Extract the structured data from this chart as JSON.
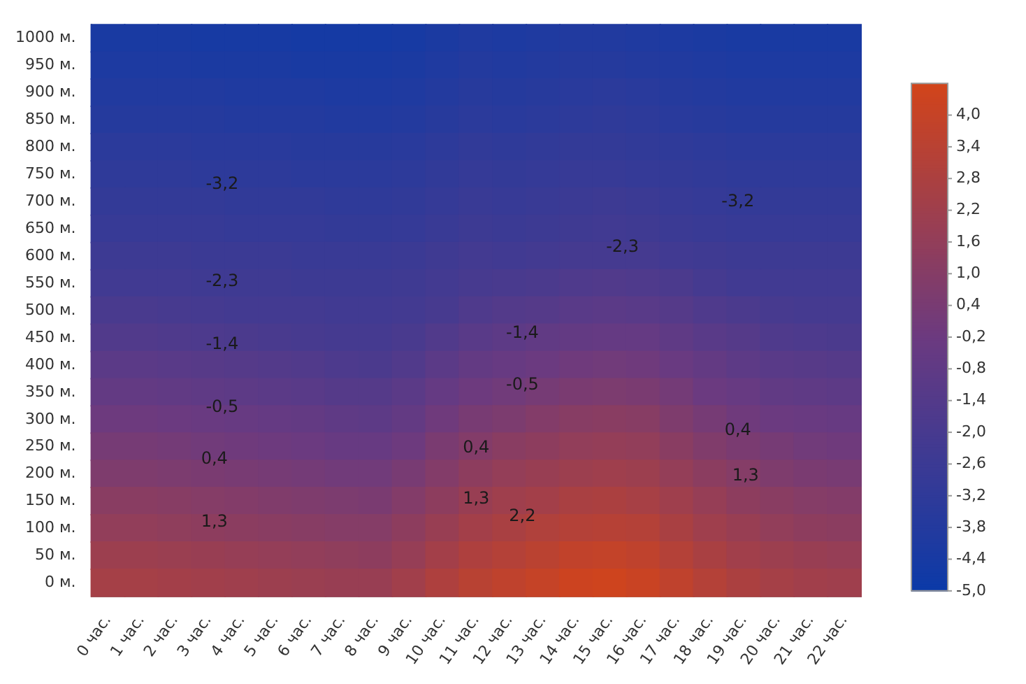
{
  "chart_data": {
    "type": "heatmap",
    "categories": [
      "0 час.",
      "1 час.",
      "2 час.",
      "3 час.",
      "4 час.",
      "5 час.",
      "6 час.",
      "7 час.",
      "8 час.",
      "9 час.",
      "10 час.",
      "11 час.",
      "12 час.",
      "13 час.",
      "14 час.",
      "15 час.",
      "16 час.",
      "17 час.",
      "18 час.",
      "19 час.",
      "20 час.",
      "21 час.",
      "22 час."
    ],
    "y_categories": [
      "1000 м.",
      "950 м.",
      "900 м.",
      "850 м.",
      "800 м.",
      "750 м.",
      "700 м.",
      "650 м.",
      "600 м.",
      "550 м.",
      "500 м.",
      "450 м.",
      "400 м.",
      "350 м.",
      "300 м.",
      "250 м.",
      "200 м.",
      "150 м.",
      "100 м.",
      "50 м.",
      "0 м."
    ],
    "cells": [
      [
        -4.3,
        -4.3,
        -4.3,
        -4.4,
        -4.4,
        -4.4,
        -4.5,
        -4.5,
        -4.5,
        -4.4,
        -4.2,
        -4.0,
        -4.1,
        -4.0,
        -3.9,
        -3.9,
        -4.0,
        -4.1,
        -4.2,
        -4.3,
        -4.3,
        -4.3,
        -4.3
      ],
      [
        -4.1,
        -4.1,
        -4.1,
        -4.2,
        -4.2,
        -4.2,
        -4.3,
        -4.3,
        -4.3,
        -4.2,
        -4.0,
        -3.8,
        -3.9,
        -3.8,
        -3.7,
        -3.7,
        -3.8,
        -3.9,
        -4.0,
        -4.1,
        -4.1,
        -4.1,
        -4.1
      ],
      [
        -3.9,
        -3.9,
        -3.9,
        -3.9,
        -4.0,
        -4.0,
        -4.0,
        -4.1,
        -4.1,
        -4.0,
        -3.8,
        -3.6,
        -3.7,
        -3.6,
        -3.5,
        -3.4,
        -3.5,
        -3.7,
        -3.8,
        -3.9,
        -3.9,
        -3.9,
        -3.9
      ],
      [
        -3.7,
        -3.7,
        -3.7,
        -3.7,
        -3.8,
        -3.8,
        -3.8,
        -3.9,
        -3.9,
        -3.8,
        -3.6,
        -3.4,
        -3.5,
        -3.4,
        -3.3,
        -3.2,
        -3.3,
        -3.5,
        -3.6,
        -3.7,
        -3.7,
        -3.7,
        -3.7
      ],
      [
        -3.4,
        -3.4,
        -3.4,
        -3.5,
        -3.5,
        -3.5,
        -3.6,
        -3.6,
        -3.6,
        -3.5,
        -3.3,
        -3.1,
        -3.2,
        -3.1,
        -3.0,
        -3.0,
        -3.1,
        -3.2,
        -3.3,
        -3.4,
        -3.4,
        -3.4,
        -3.4
      ],
      [
        -3.2,
        -3.2,
        -3.2,
        -3.3,
        -3.3,
        -3.3,
        -3.4,
        -3.4,
        -3.4,
        -3.3,
        -3.1,
        -2.9,
        -3.0,
        -2.9,
        -2.8,
        -2.8,
        -2.9,
        -3.0,
        -3.1,
        -3.2,
        -3.2,
        -3.2,
        -3.2
      ],
      [
        -3.0,
        -3.0,
        -3.0,
        -3.0,
        -3.1,
        -3.1,
        -3.1,
        -3.2,
        -3.2,
        -3.1,
        -2.9,
        -2.7,
        -2.8,
        -2.7,
        -2.6,
        -2.5,
        -2.6,
        -2.8,
        -2.9,
        -3.0,
        -3.0,
        -3.0,
        -3.0
      ],
      [
        -2.8,
        -2.8,
        -2.8,
        -2.8,
        -2.9,
        -2.9,
        -2.9,
        -3.0,
        -3.0,
        -2.9,
        -2.7,
        -2.5,
        -2.6,
        -2.5,
        -2.4,
        -2.3,
        -2.4,
        -2.6,
        -2.7,
        -2.8,
        -2.8,
        -2.8,
        -2.8
      ],
      [
        -2.5,
        -2.5,
        -2.5,
        -2.6,
        -2.6,
        -2.6,
        -2.7,
        -2.7,
        -2.7,
        -2.6,
        -2.4,
        -2.2,
        -2.3,
        -2.2,
        -2.1,
        -2.1,
        -2.1,
        -2.3,
        -2.4,
        -2.5,
        -2.5,
        -2.5,
        -2.5
      ],
      [
        -2.3,
        -2.3,
        -2.3,
        -2.4,
        -2.4,
        -2.4,
        -2.5,
        -2.5,
        -2.5,
        -2.4,
        -2.2,
        -2.0,
        -1.9,
        -1.8,
        -1.6,
        -1.5,
        -1.6,
        -1.8,
        -2.1,
        -2.3,
        -2.3,
        -2.3,
        -2.3
      ],
      [
        -1.9,
        -1.9,
        -2.0,
        -2.1,
        -2.2,
        -2.2,
        -2.2,
        -2.3,
        -2.3,
        -2.2,
        -2.0,
        -1.6,
        -1.4,
        -1.3,
        -1.1,
        -1.0,
        -1.1,
        -1.3,
        -1.6,
        -1.8,
        -2.0,
        -2.1,
        -2.1
      ],
      [
        -1.5,
        -1.5,
        -1.6,
        -1.7,
        -1.8,
        -1.9,
        -2.0,
        -2.1,
        -2.1,
        -1.9,
        -1.5,
        -1.1,
        -0.9,
        -0.7,
        -0.6,
        -0.5,
        -0.5,
        -0.8,
        -1.1,
        -1.3,
        -1.6,
        -1.7,
        -1.8
      ],
      [
        -1.0,
        -1.0,
        -1.1,
        -1.2,
        -1.3,
        -1.4,
        -1.5,
        -1.7,
        -1.8,
        -1.5,
        -1.0,
        -0.6,
        -0.4,
        -0.2,
        0.0,
        0.1,
        0.0,
        -0.3,
        -0.6,
        -0.9,
        -1.1,
        -1.2,
        -1.3
      ],
      [
        -0.6,
        -0.6,
        -0.7,
        -0.8,
        -0.9,
        -1.0,
        -1.1,
        -1.3,
        -1.3,
        -1.0,
        -0.5,
        -0.1,
        0.1,
        0.3,
        0.5,
        0.6,
        0.5,
        0.2,
        -0.2,
        -0.4,
        -0.7,
        -0.8,
        -0.9
      ],
      [
        -0.1,
        -0.1,
        -0.2,
        -0.3,
        -0.4,
        -0.5,
        -0.6,
        -0.8,
        -0.9,
        -0.6,
        0.0,
        0.4,
        0.6,
        0.9,
        1.1,
        1.2,
        1.1,
        0.7,
        0.3,
        0.0,
        -0.2,
        -0.3,
        -0.4
      ],
      [
        0.3,
        0.3,
        0.2,
        0.1,
        0.0,
        -0.1,
        -0.2,
        -0.4,
        -0.4,
        -0.1,
        0.5,
        0.9,
        1.2,
        1.4,
        1.6,
        1.7,
        1.6,
        1.2,
        0.8,
        0.5,
        0.3,
        0.1,
        0.0
      ],
      [
        0.7,
        0.7,
        0.6,
        0.5,
        0.4,
        0.3,
        0.2,
        0.1,
        0.1,
        0.4,
        0.9,
        1.4,
        1.7,
        1.9,
        2.1,
        2.2,
        2.1,
        1.7,
        1.3,
        1.0,
        0.7,
        0.5,
        0.4
      ],
      [
        1.2,
        1.2,
        1.1,
        1.0,
        0.9,
        0.8,
        0.7,
        0.6,
        0.5,
        0.9,
        1.4,
        1.9,
        2.2,
        2.4,
        2.7,
        2.8,
        2.6,
        2.2,
        1.8,
        1.4,
        1.2,
        1.0,
        0.9
      ],
      [
        1.6,
        1.6,
        1.5,
        1.4,
        1.3,
        1.2,
        1.1,
        1.0,
        1.0,
        1.4,
        1.9,
        2.4,
        2.7,
        3.0,
        3.2,
        3.3,
        3.2,
        2.7,
        2.2,
        1.9,
        1.6,
        1.4,
        1.3
      ],
      [
        2.1,
        2.1,
        2.0,
        1.9,
        1.8,
        1.7,
        1.6,
        1.5,
        1.4,
        1.8,
        2.4,
        2.9,
        3.2,
        3.5,
        3.8,
        3.9,
        3.7,
        3.2,
        2.7,
        2.3,
        2.1,
        1.9,
        1.8
      ],
      [
        2.5,
        2.5,
        2.4,
        2.3,
        2.2,
        2.1,
        2.0,
        1.9,
        1.9,
        2.3,
        2.9,
        3.4,
        3.7,
        4.0,
        4.3,
        4.4,
        4.2,
        3.7,
        3.2,
        2.8,
        2.5,
        2.3,
        2.2
      ]
    ],
    "clim": [
      -5.0,
      4.6
    ],
    "cticks": [
      {
        "value": 4.0,
        "label": "4,0"
      },
      {
        "value": 3.4,
        "label": "3,4"
      },
      {
        "value": 2.8,
        "label": "2,8"
      },
      {
        "value": 2.2,
        "label": "2,2"
      },
      {
        "value": 1.6,
        "label": "1,6"
      },
      {
        "value": 1.0,
        "label": "1,0"
      },
      {
        "value": 0.4,
        "label": "0,4"
      },
      {
        "value": -0.2,
        "label": "-0,2"
      },
      {
        "value": -0.8,
        "label": "-0,8"
      },
      {
        "value": -1.4,
        "label": "-1,4"
      },
      {
        "value": -2.0,
        "label": "-2,0"
      },
      {
        "value": -2.6,
        "label": "-2,6"
      },
      {
        "value": -3.2,
        "label": "-3,2"
      },
      {
        "value": -3.8,
        "label": "-3,8"
      },
      {
        "value": -4.4,
        "label": "-4,4"
      },
      {
        "value": -5.0,
        "label": "-5,0"
      }
    ],
    "annotations": [
      "-3,2",
      "-2,3",
      "-1,4",
      "-0,5",
      "0,4",
      "1,3",
      "0,4",
      "1,3",
      "2,2",
      "-0,5",
      "-1,4",
      "-2,3",
      "-3,2",
      "0,4",
      "1,3"
    ]
  }
}
